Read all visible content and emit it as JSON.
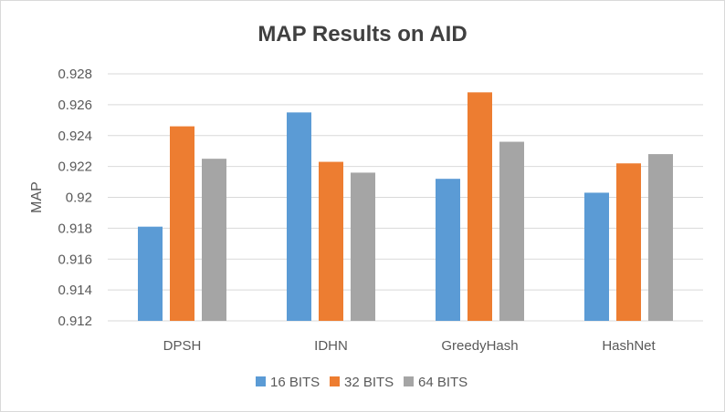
{
  "chart_data": {
    "type": "bar",
    "title": "MAP Results on AID",
    "xlabel": "",
    "ylabel": "MAP",
    "categories": [
      "DPSH",
      "IDHN",
      "GreedyHash",
      "HashNet"
    ],
    "series": [
      {
        "name": "16 BITS",
        "color": "#5b9bd5",
        "values": [
          0.9181,
          0.9255,
          0.9212,
          0.9203
        ]
      },
      {
        "name": "32 BITS",
        "color": "#ed7d31",
        "values": [
          0.9246,
          0.9223,
          0.9268,
          0.9222
        ]
      },
      {
        "name": "64 BITS",
        "color": "#a5a5a5",
        "values": [
          0.9225,
          0.9216,
          0.9236,
          0.9228
        ]
      }
    ],
    "ylim": [
      0.912,
      0.928
    ],
    "yticks": [
      "0.912",
      "0.914",
      "0.916",
      "0.918",
      "0.92",
      "0.922",
      "0.924",
      "0.926",
      "0.928"
    ],
    "grid": true,
    "legend_position": "bottom"
  }
}
